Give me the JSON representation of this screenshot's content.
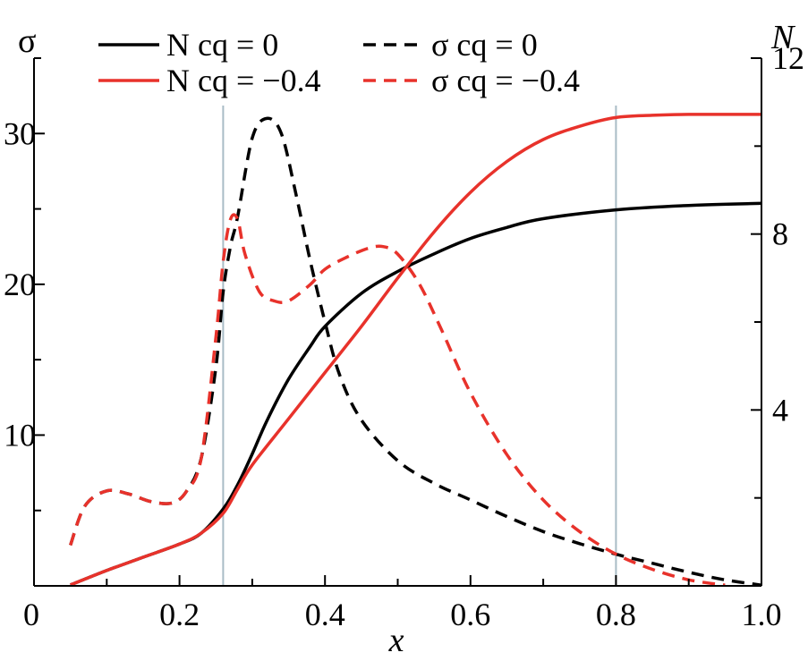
{
  "chart_data": {
    "type": "line",
    "xlabel": "x",
    "ylabel_left": "σ",
    "ylabel_right": "N",
    "xlim": [
      0,
      1.0
    ],
    "ylim_left": [
      0,
      35
    ],
    "ylim_right": [
      0,
      12
    ],
    "x_ticks": [
      {
        "value": 0,
        "label": "0"
      },
      {
        "value": 0.2,
        "label": "0.2"
      },
      {
        "value": 0.4,
        "label": "0.4"
      },
      {
        "value": 0.6,
        "label": "0.6"
      },
      {
        "value": 0.8,
        "label": "0.8"
      },
      {
        "value": 1.0,
        "label": "1.0"
      }
    ],
    "x_minor_ticks": [
      0.1,
      0.3,
      0.5,
      0.7,
      0.9
    ],
    "left_ticks": [
      {
        "value": 10,
        "label": "10"
      },
      {
        "value": 20,
        "label": "20"
      },
      {
        "value": 30,
        "label": "30"
      }
    ],
    "left_minor_ticks": [
      5,
      15,
      25,
      35
    ],
    "right_ticks": [
      {
        "value": 4,
        "label": "4"
      },
      {
        "value": 8,
        "label": "8"
      },
      {
        "value": 12,
        "label": "12"
      }
    ],
    "right_minor_ticks": [
      2,
      6,
      10
    ],
    "vertical_lines": [
      0.26,
      0.8
    ],
    "vertical_line_color": "#a9bcc6",
    "grid": false,
    "legend_placement": "top",
    "series": [
      {
        "name": "N cq = 0",
        "axis": "right",
        "color": "#000000",
        "dash": "solid",
        "points": [
          [
            0.05,
            0.02
          ],
          [
            0.1,
            0.35
          ],
          [
            0.15,
            0.65
          ],
          [
            0.2,
            0.95
          ],
          [
            0.23,
            1.2
          ],
          [
            0.26,
            1.75
          ],
          [
            0.28,
            2.3
          ],
          [
            0.3,
            3.0
          ],
          [
            0.32,
            3.75
          ],
          [
            0.35,
            4.7
          ],
          [
            0.38,
            5.45
          ],
          [
            0.4,
            5.9
          ],
          [
            0.45,
            6.65
          ],
          [
            0.5,
            7.15
          ],
          [
            0.55,
            7.55
          ],
          [
            0.6,
            7.9
          ],
          [
            0.65,
            8.15
          ],
          [
            0.7,
            8.35
          ],
          [
            0.8,
            8.55
          ],
          [
            0.9,
            8.65
          ],
          [
            1.0,
            8.7
          ]
        ]
      },
      {
        "name": "N cq = −0.4",
        "axis": "right",
        "color": "#e8322b",
        "dash": "solid",
        "points": [
          [
            0.05,
            0.02
          ],
          [
            0.1,
            0.35
          ],
          [
            0.15,
            0.65
          ],
          [
            0.2,
            0.95
          ],
          [
            0.23,
            1.2
          ],
          [
            0.26,
            1.65
          ],
          [
            0.28,
            2.2
          ],
          [
            0.3,
            2.75
          ],
          [
            0.35,
            3.8
          ],
          [
            0.4,
            4.85
          ],
          [
            0.45,
            5.9
          ],
          [
            0.5,
            7.0
          ],
          [
            0.55,
            8.05
          ],
          [
            0.6,
            8.95
          ],
          [
            0.65,
            9.65
          ],
          [
            0.7,
            10.15
          ],
          [
            0.75,
            10.45
          ],
          [
            0.8,
            10.65
          ],
          [
            0.85,
            10.7
          ],
          [
            0.9,
            10.72
          ],
          [
            1.0,
            10.72
          ]
        ]
      },
      {
        "name": "σ cq = 0",
        "axis": "left",
        "color": "#000000",
        "dash": "dashed",
        "points": [
          [
            0.05,
            2.7
          ],
          [
            0.07,
            5.3
          ],
          [
            0.1,
            6.3
          ],
          [
            0.13,
            6.1
          ],
          [
            0.16,
            5.6
          ],
          [
            0.19,
            5.5
          ],
          [
            0.21,
            6.3
          ],
          [
            0.23,
            8.5
          ],
          [
            0.25,
            14.5
          ],
          [
            0.26,
            19.5
          ],
          [
            0.27,
            22.5
          ],
          [
            0.28,
            24.5
          ],
          [
            0.3,
            29.7
          ],
          [
            0.32,
            31.0
          ],
          [
            0.34,
            30.0
          ],
          [
            0.36,
            26.0
          ],
          [
            0.38,
            21.5
          ],
          [
            0.4,
            17.5
          ],
          [
            0.42,
            14.0
          ],
          [
            0.45,
            11.0
          ],
          [
            0.5,
            8.3
          ],
          [
            0.55,
            6.8
          ],
          [
            0.6,
            5.7
          ],
          [
            0.65,
            4.6
          ],
          [
            0.7,
            3.6
          ],
          [
            0.75,
            2.8
          ],
          [
            0.8,
            2.1
          ],
          [
            0.85,
            1.5
          ],
          [
            0.9,
            0.9
          ],
          [
            0.95,
            0.4
          ],
          [
            1.0,
            0.05
          ]
        ]
      },
      {
        "name": "σ cq = −0.4",
        "axis": "left",
        "color": "#e8322b",
        "dash": "dashed",
        "points": [
          [
            0.05,
            2.7
          ],
          [
            0.07,
            5.3
          ],
          [
            0.1,
            6.3
          ],
          [
            0.13,
            6.1
          ],
          [
            0.16,
            5.6
          ],
          [
            0.19,
            5.5
          ],
          [
            0.21,
            6.3
          ],
          [
            0.23,
            8.5
          ],
          [
            0.25,
            16.5
          ],
          [
            0.26,
            21.5
          ],
          [
            0.27,
            24.3
          ],
          [
            0.28,
            24.3
          ],
          [
            0.29,
            22.0
          ],
          [
            0.31,
            19.5
          ],
          [
            0.33,
            18.9
          ],
          [
            0.35,
            18.9
          ],
          [
            0.38,
            20.0
          ],
          [
            0.4,
            21.0
          ],
          [
            0.43,
            21.8
          ],
          [
            0.46,
            22.4
          ],
          [
            0.48,
            22.5
          ],
          [
            0.5,
            22.0
          ],
          [
            0.53,
            20.0
          ],
          [
            0.56,
            17.0
          ],
          [
            0.6,
            12.8
          ],
          [
            0.65,
            8.7
          ],
          [
            0.7,
            5.7
          ],
          [
            0.75,
            3.6
          ],
          [
            0.8,
            2.1
          ],
          [
            0.85,
            1.1
          ],
          [
            0.9,
            0.4
          ],
          [
            0.95,
            0.05
          ]
        ]
      }
    ]
  }
}
